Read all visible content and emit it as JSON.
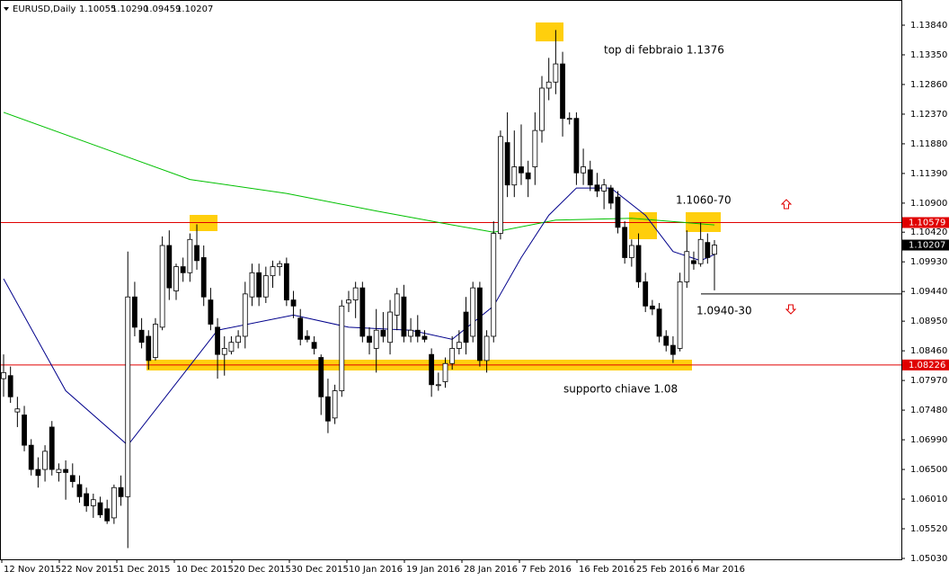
{
  "header": {
    "symbol": "EURUSD,Daily",
    "ohlc_labels": [
      "1.10055",
      "1.10290",
      "1.09459",
      "1.10207"
    ]
  },
  "chart_data": {
    "type": "candlestick",
    "ylim": [
      1.0503,
      1.1384
    ],
    "yticks": [
      {
        "value": 1.1384,
        "label": "1.13840"
      },
      {
        "value": 1.1335,
        "label": "1.13350"
      },
      {
        "value": 1.1286,
        "label": "1.12860"
      },
      {
        "value": 1.1237,
        "label": "1.12370"
      },
      {
        "value": 1.1188,
        "label": "1.11880"
      },
      {
        "value": 1.1139,
        "label": "1.11390"
      },
      {
        "value": 1.109,
        "label": "1.10900"
      },
      {
        "value": 1.1042,
        "label": "1.10420"
      },
      {
        "value": 1.0993,
        "label": "1.09930"
      },
      {
        "value": 1.0944,
        "label": "1.09440"
      },
      {
        "value": 1.0895,
        "label": "1.08950"
      },
      {
        "value": 1.0846,
        "label": "1.08460"
      },
      {
        "value": 1.0797,
        "label": "1.07970"
      },
      {
        "value": 1.0748,
        "label": "1.07480"
      },
      {
        "value": 1.0699,
        "label": "1.06990"
      },
      {
        "value": 1.065,
        "label": "1.06500"
      },
      {
        "value": 1.0601,
        "label": "1.06010"
      },
      {
        "value": 1.0552,
        "label": "1.05520"
      },
      {
        "value": 1.0503,
        "label": "1.05030"
      }
    ],
    "xlabels": [
      "12 Nov 2015",
      "22 Nov 2015",
      "1 Dec 2015",
      "10 Dec 2015",
      "20 Dec 2015",
      "30 Dec 2015",
      "10 Jan 2016",
      "19 Jan 2016",
      "28 Jan 2016",
      "7 Feb 2016",
      "16 Feb 2016",
      "25 Feb 2016",
      "6 Mar 2016"
    ],
    "open": [
      1.08,
      1.0805,
      1.0745,
      1.074,
      1.069,
      1.065,
      1.065,
      1.072,
      1.0645,
      1.065,
      1.064,
      1.0625,
      1.061,
      1.059,
      1.0595,
      1.0585,
      1.057,
      1.062,
      1.0605,
      1.0935,
      1.088,
      1.087,
      1.0835,
      1.0885,
      1.102,
      1.0945,
      1.0985,
      1.0975,
      1.102,
      1.1,
      1.093,
      1.0885,
      1.084,
      1.0845,
      1.086,
      1.087,
      1.0935,
      1.0975,
      1.0935,
      1.097,
      1.0985,
      1.099,
      1.093,
      1.09,
      1.087,
      1.086,
      1.0835,
      1.077,
      1.0735,
      1.078,
      1.0925,
      1.093,
      1.095,
      1.087,
      1.085,
      1.088,
      1.086,
      1.0905,
      1.0935,
      1.087,
      1.088,
      1.087,
      1.084,
      1.079,
      1.0795,
      1.0825,
      1.085,
      1.091,
      1.087,
      1.095,
      1.083,
      1.087,
      1.104,
      1.119,
      1.112,
      1.115,
      1.114,
      1.115,
      1.121,
      1.128,
      1.129,
      1.132,
      1.123,
      1.123,
      1.114,
      1.1145,
      1.112,
      1.111,
      1.1115,
      1.11,
      1.105,
      1.1,
      1.102,
      1.096,
      1.092,
      1.0915,
      1.087,
      1.0855,
      1.085,
      1.096,
      1.0995,
      1.099,
      1.1025,
      1.10055
    ],
    "high": [
      1.084,
      1.082,
      1.077,
      1.0755,
      1.07,
      1.067,
      1.069,
      1.073,
      1.066,
      1.0665,
      1.066,
      1.064,
      1.062,
      1.061,
      1.0605,
      1.06,
      1.0625,
      1.064,
      1.101,
      1.096,
      1.09,
      1.088,
      1.09,
      1.1035,
      1.1045,
      1.099,
      1.1,
      1.104,
      1.1055,
      1.102,
      1.095,
      1.09,
      1.087,
      1.087,
      1.088,
      1.096,
      1.099,
      1.099,
      1.0985,
      1.0995,
      1.0995,
      1.1,
      1.0945,
      1.0915,
      1.088,
      1.087,
      1.084,
      1.08,
      1.079,
      1.093,
      1.0945,
      1.096,
      1.096,
      1.0885,
      1.0915,
      1.091,
      1.093,
      1.095,
      1.0955,
      1.09,
      1.0905,
      1.088,
      1.085,
      1.081,
      1.0835,
      1.087,
      1.088,
      1.0935,
      1.096,
      1.096,
      1.088,
      1.106,
      1.121,
      1.124,
      1.121,
      1.122,
      1.116,
      1.124,
      1.13,
      1.133,
      1.1376,
      1.134,
      1.124,
      1.124,
      1.118,
      1.116,
      1.114,
      1.113,
      1.112,
      1.111,
      1.106,
      1.103,
      1.104,
      1.0975,
      1.093,
      1.0925,
      1.088,
      1.087,
      1.0975,
      1.1045,
      1.101,
      1.1058,
      1.104,
      1.1029
    ],
    "low": [
      1.077,
      1.076,
      1.072,
      1.068,
      1.064,
      1.062,
      1.063,
      1.064,
      1.063,
      1.06,
      1.062,
      1.0595,
      1.058,
      1.057,
      1.057,
      1.056,
      1.056,
      1.059,
      1.052,
      1.087,
      1.085,
      1.0815,
      1.083,
      1.088,
      1.093,
      1.093,
      1.096,
      1.096,
      1.098,
      1.092,
      1.088,
      1.08,
      1.0805,
      1.084,
      1.085,
      1.085,
      1.092,
      1.092,
      1.0925,
      1.095,
      1.097,
      1.092,
      1.09,
      1.0855,
      1.086,
      1.084,
      1.074,
      1.071,
      1.0725,
      1.077,
      1.091,
      1.09,
      1.086,
      1.084,
      1.081,
      1.086,
      1.084,
      1.088,
      1.086,
      1.086,
      1.086,
      1.086,
      1.077,
      1.078,
      1.0785,
      1.0815,
      1.084,
      1.084,
      1.086,
      1.082,
      1.081,
      1.086,
      1.103,
      1.11,
      1.11,
      1.112,
      1.11,
      1.112,
      1.119,
      1.126,
      1.127,
      1.12,
      1.122,
      1.112,
      1.112,
      1.111,
      1.11,
      1.108,
      1.108,
      1.104,
      1.099,
      1.0985,
      1.095,
      1.091,
      1.0905,
      1.086,
      1.0845,
      1.0826,
      1.0845,
      1.095,
      1.098,
      1.0985,
      1.099,
      1.09459
    ],
    "close": [
      1.081,
      1.077,
      1.075,
      1.069,
      1.065,
      1.064,
      1.068,
      1.065,
      1.065,
      1.0645,
      1.063,
      1.0605,
      1.059,
      1.06,
      1.0575,
      1.0565,
      1.062,
      1.0605,
      1.0935,
      1.0885,
      1.086,
      1.083,
      1.089,
      1.102,
      1.095,
      1.0985,
      1.0975,
      1.103,
      1.0995,
      1.0935,
      1.089,
      1.084,
      1.085,
      1.086,
      1.087,
      1.094,
      1.0975,
      1.0935,
      1.097,
      1.0985,
      1.099,
      1.093,
      1.092,
      1.0865,
      1.0865,
      1.085,
      1.077,
      1.073,
      1.078,
      1.092,
      1.093,
      1.095,
      1.087,
      1.086,
      1.088,
      1.087,
      1.091,
      1.094,
      1.087,
      1.088,
      1.087,
      1.0865,
      1.079,
      1.079,
      1.0825,
      1.085,
      1.086,
      1.086,
      1.095,
      1.083,
      1.087,
      1.104,
      1.12,
      1.112,
      1.115,
      1.114,
      1.113,
      1.121,
      1.128,
      1.129,
      1.132,
      1.123,
      1.123,
      1.114,
      1.115,
      1.112,
      1.111,
      1.112,
      1.109,
      1.105,
      1.1,
      1.102,
      1.096,
      1.092,
      1.0915,
      1.087,
      1.0855,
      1.084,
      1.096,
      1.101,
      1.099,
      1.103,
      1.1,
      1.10207
    ],
    "series": [
      {
        "color": "#00c000",
        "x": [
          0,
          27,
          41,
          54,
          65,
          71,
          80,
          91,
          103
        ],
        "values": [
          1.124,
          1.1129,
          1.1106,
          1.1077,
          1.1054,
          1.1042,
          1.1062,
          1.1065,
          1.1054
        ]
      },
      {
        "color": "#00008b",
        "x": [
          0,
          9,
          18,
          31,
          42,
          50,
          59,
          65,
          71,
          75,
          79,
          83,
          88,
          93,
          97,
          101,
          103
        ],
        "values": [
          1.0965,
          1.078,
          1.069,
          1.088,
          1.0905,
          1.0885,
          1.088,
          1.0865,
          1.092,
          1.1,
          1.107,
          1.1115,
          1.1115,
          1.107,
          1.101,
          1.0995,
          1.1005
        ]
      }
    ],
    "hlines": [
      {
        "value": 1.10579,
        "color": "#e00000"
      },
      {
        "value": 1.08226,
        "color": "#e00000"
      }
    ],
    "level": {
      "value": 1.094,
      "color": "#000000"
    },
    "annotations": [
      "top di febbraio 1.1376",
      "1.1060-70",
      "1.0940-30",
      "supporto chiave 1.08"
    ]
  }
}
